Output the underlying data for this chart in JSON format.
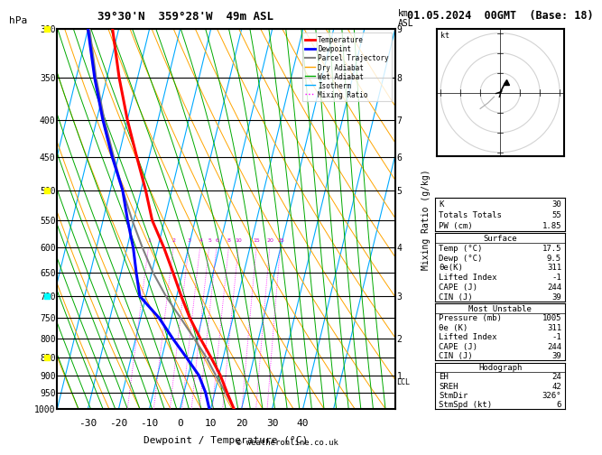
{
  "title_left": "39°30'N  359°28'W  49m ASL",
  "title_right": "01.05.2024  00GMT  (Base: 18)",
  "xlabel": "Dewpoint / Temperature (°C)",
  "pressure_major": [
    300,
    350,
    400,
    450,
    500,
    550,
    600,
    650,
    700,
    750,
    800,
    850,
    900,
    950,
    1000
  ],
  "temp_ticks": [
    -30,
    -20,
    -10,
    0,
    10,
    20,
    30,
    40
  ],
  "T_min": -40,
  "T_max": 40,
  "P_min": 300,
  "P_max": 1000,
  "skew": 30,
  "temp_profile": {
    "pressure": [
      1000,
      950,
      900,
      850,
      800,
      750,
      700,
      650,
      600,
      550,
      500,
      450,
      400,
      350,
      300
    ],
    "temperature": [
      17.5,
      14.0,
      10.5,
      6.0,
      1.0,
      -4.0,
      -8.5,
      -13.0,
      -18.0,
      -24.0,
      -28.5,
      -34.0,
      -40.0,
      -46.0,
      -52.0
    ]
  },
  "dewpoint_profile": {
    "pressure": [
      1000,
      950,
      900,
      850,
      800,
      750,
      700,
      650,
      600,
      550,
      500,
      450,
      400,
      350,
      300
    ],
    "temperature": [
      9.5,
      7.0,
      3.5,
      -2.0,
      -8.0,
      -14.0,
      -22.0,
      -25.0,
      -28.0,
      -32.0,
      -36.0,
      -42.0,
      -48.0,
      -54.0,
      -60.0
    ]
  },
  "parcel_trajectory": {
    "pressure": [
      1000,
      950,
      900,
      850,
      800,
      750,
      700,
      650,
      600,
      550,
      500,
      450,
      400,
      350,
      300
    ],
    "temperature": [
      17.5,
      13.5,
      9.0,
      4.5,
      -1.0,
      -7.0,
      -13.5,
      -19.5,
      -25.0,
      -30.5,
      -36.0,
      -41.5,
      -47.5,
      -53.5,
      -59.5
    ]
  },
  "colors": {
    "temperature": "#FF0000",
    "dewpoint": "#0000FF",
    "parcel": "#808080",
    "dry_adiabat": "#FFA500",
    "wet_adiabat": "#00AA00",
    "isotherm": "#00AAFF",
    "mixing_ratio": "#FF00FF",
    "background": "#FFFFFF"
  },
  "km_labels": [
    [
      300,
      "9"
    ],
    [
      350,
      "8"
    ],
    [
      400,
      "7"
    ],
    [
      450,
      "6"
    ],
    [
      500,
      "5"
    ],
    [
      600,
      "4"
    ],
    [
      700,
      "3"
    ],
    [
      800,
      "2"
    ],
    [
      900,
      "1"
    ]
  ],
  "lcl_pressure": 900,
  "mr_vals": [
    1,
    2,
    3,
    4,
    5,
    6,
    8,
    10,
    15,
    20,
    25
  ],
  "theta_dry": [
    230,
    240,
    250,
    260,
    270,
    280,
    290,
    300,
    310,
    320,
    330,
    340,
    350,
    360,
    370,
    380,
    390,
    400,
    410,
    420
  ],
  "theta_w": [
    240,
    244,
    248,
    252,
    256,
    260,
    264,
    268,
    272,
    276,
    280,
    284,
    288,
    292,
    296,
    300,
    304,
    308,
    312,
    316,
    320,
    324,
    328,
    332,
    336,
    340
  ],
  "iso_temps": [
    -60,
    -50,
    -40,
    -30,
    -20,
    -10,
    0,
    10,
    20,
    30,
    40,
    50
  ],
  "wind_markers": {
    "pressures": [
      300,
      500,
      700,
      850
    ],
    "colors": [
      "#FFFF00",
      "#FFFF00",
      "#00FFFF",
      "#FFFF00"
    ],
    "shapes": [
      "H",
      "H",
      "H",
      "H"
    ]
  },
  "table_indices": [
    [
      "K",
      "30"
    ],
    [
      "Totals Totals",
      "55"
    ],
    [
      "PW (cm)",
      "1.85"
    ]
  ],
  "table_surface": {
    "header": "Surface",
    "rows": [
      [
        "Temp (°C)",
        "17.5"
      ],
      [
        "Dewp (°C)",
        "9.5"
      ],
      [
        "θe(K)",
        "311"
      ],
      [
        "Lifted Index",
        "-1"
      ],
      [
        "CAPE (J)",
        "244"
      ],
      [
        "CIN (J)",
        "39"
      ]
    ]
  },
  "table_mu": {
    "header": "Most Unstable",
    "rows": [
      [
        "Pressure (mb)",
        "1005"
      ],
      [
        "θe (K)",
        "311"
      ],
      [
        "Lifted Index",
        "-1"
      ],
      [
        "CAPE (J)",
        "244"
      ],
      [
        "CIN (J)",
        "39"
      ]
    ]
  },
  "table_hodo": {
    "header": "Hodograph",
    "rows": [
      [
        "EH",
        "24"
      ],
      [
        "SREH",
        "42"
      ],
      [
        "StmDir",
        "326°"
      ],
      [
        "StmSpd (kt)",
        "6"
      ]
    ]
  },
  "copyright": "© weatheronline.co.uk"
}
